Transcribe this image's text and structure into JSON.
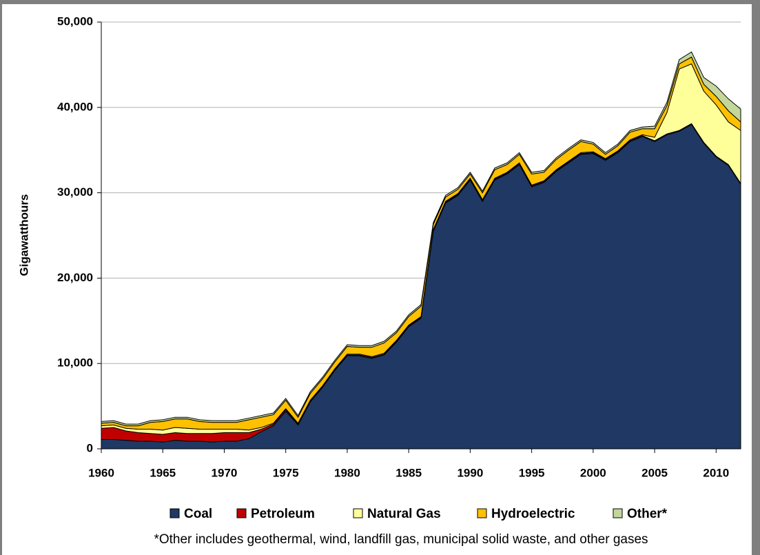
{
  "chart_data": {
    "type": "stacked_area",
    "ylabel": "Gigawatthours",
    "footnote": "*Other includes geothermal, wind, landfill gas, municipal solid waste, and other gases",
    "x": [
      1960,
      1961,
      1962,
      1963,
      1964,
      1965,
      1966,
      1967,
      1968,
      1969,
      1970,
      1971,
      1972,
      1973,
      1974,
      1975,
      1976,
      1977,
      1978,
      1979,
      1980,
      1981,
      1982,
      1983,
      1984,
      1985,
      1986,
      1987,
      1988,
      1989,
      1990,
      1991,
      1992,
      1993,
      1994,
      1995,
      1996,
      1997,
      1998,
      1999,
      2000,
      2001,
      2002,
      2003,
      2004,
      2005,
      2006,
      2007,
      2008,
      2009,
      2010,
      2011,
      2012
    ],
    "xlim": [
      1960,
      2012
    ],
    "xticks": [
      1960,
      1965,
      1970,
      1975,
      1980,
      1985,
      1990,
      1995,
      2000,
      2005,
      2010
    ],
    "ylim": [
      0,
      50000
    ],
    "yticks": [
      0,
      {
        "value": 10000,
        "label": "10,000"
      },
      {
        "value": 20000,
        "label": "20,000"
      },
      {
        "value": 30000,
        "label": "30,000"
      },
      {
        "value": 40000,
        "label": "40,000"
      },
      {
        "value": 50000,
        "label": "50,000"
      }
    ],
    "grid": true,
    "legend": "bottom",
    "series": [
      {
        "name": "Coal",
        "color": "#1f3864",
        "values": [
          1100,
          1100,
          1000,
          900,
          900,
          800,
          1000,
          900,
          900,
          800,
          900,
          900,
          1200,
          2000,
          2700,
          4400,
          2800,
          5500,
          7200,
          9200,
          10900,
          10900,
          10600,
          11000,
          12500,
          14300,
          15300,
          25500,
          28800,
          29700,
          31500,
          29000,
          31500,
          32200,
          33300,
          30700,
          31200,
          32500,
          33500,
          34500,
          34600,
          33800,
          34700,
          36000,
          36600,
          36000,
          36800,
          37200,
          38000,
          35800,
          34200,
          33200,
          31000
        ]
      },
      {
        "name": "Petroleum",
        "color": "#c00000",
        "values": [
          1300,
          1400,
          1100,
          1000,
          900,
          900,
          900,
          900,
          900,
          1000,
          1000,
          1000,
          700,
          300,
          200,
          200,
          100,
          100,
          100,
          100,
          100,
          100,
          100,
          100,
          100,
          100,
          100,
          100,
          100,
          100,
          100,
          100,
          100,
          100,
          100,
          100,
          100,
          100,
          100,
          100,
          100,
          100,
          100,
          100,
          100,
          100,
          100,
          100,
          100,
          100,
          100,
          100,
          100
        ]
      },
      {
        "name": "Natural Gas",
        "color": "#ffff99",
        "values": [
          300,
          300,
          300,
          400,
          500,
          500,
          600,
          600,
          500,
          500,
          400,
          400,
          300,
          200,
          100,
          100,
          100,
          100,
          100,
          100,
          100,
          100,
          100,
          100,
          100,
          100,
          100,
          100,
          100,
          100,
          100,
          100,
          100,
          100,
          100,
          100,
          100,
          100,
          100,
          100,
          100,
          100,
          100,
          100,
          100,
          400,
          2500,
          7200,
          7000,
          6000,
          6000,
          5000,
          6200
        ]
      },
      {
        "name": "Hydroelectric",
        "color": "#ffc000",
        "values": [
          300,
          300,
          300,
          400,
          800,
          1000,
          1000,
          1100,
          900,
          800,
          800,
          800,
          1200,
          1200,
          1000,
          1000,
          700,
          800,
          800,
          800,
          900,
          800,
          1100,
          1200,
          900,
          1000,
          1200,
          600,
          500,
          500,
          500,
          800,
          1000,
          900,
          1000,
          1300,
          1000,
          1200,
          1300,
          1300,
          900,
          500,
          600,
          900,
          700,
          1000,
          800,
          600,
          800,
          800,
          1000,
          1300,
          1000
        ]
      },
      {
        "name": "Other*",
        "color": "#c4d79b",
        "values": [
          200,
          200,
          200,
          200,
          200,
          200,
          200,
          200,
          200,
          200,
          200,
          200,
          200,
          200,
          200,
          200,
          200,
          200,
          200,
          200,
          200,
          200,
          200,
          200,
          200,
          200,
          200,
          200,
          200,
          200,
          200,
          200,
          200,
          200,
          200,
          200,
          200,
          200,
          200,
          200,
          200,
          200,
          200,
          200,
          200,
          300,
          400,
          500,
          600,
          800,
          1200,
          1400,
          1500
        ]
      }
    ]
  }
}
